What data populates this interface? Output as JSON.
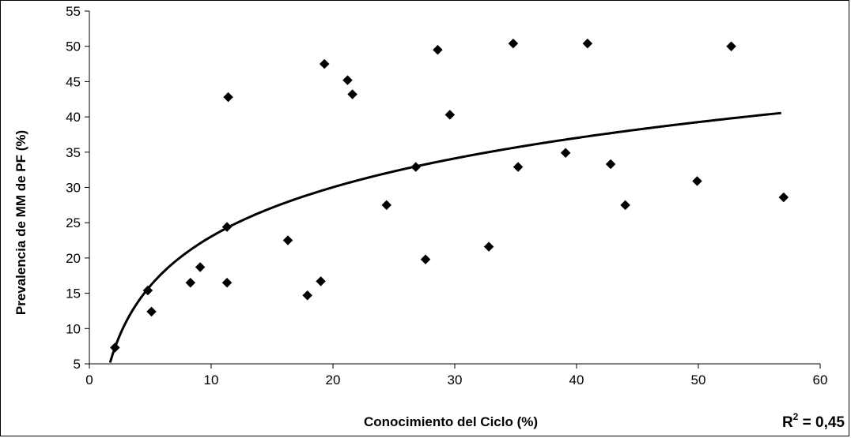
{
  "chart_data": {
    "type": "scatter",
    "title": "",
    "xlabel": "Conocimiento del Ciclo (%)",
    "ylabel": "Prevalencia de MM de PF (%)",
    "xlim": [
      0,
      60
    ],
    "ylim": [
      5,
      55
    ],
    "xticks": [
      "0",
      "10",
      "20",
      "30",
      "40",
      "50",
      "60"
    ],
    "yticks": [
      "5",
      "10",
      "15",
      "20",
      "25",
      "30",
      "35",
      "40",
      "45",
      "50",
      "55"
    ],
    "grid": false,
    "legend": "none",
    "marker": "diamond",
    "marker_color": "#000000",
    "trendline": {
      "type": "logarithmic",
      "color": "#000000",
      "x_range": [
        1.7,
        56.8
      ],
      "r2_label": "R",
      "r2_sup": "2",
      "r2_value": " = 0,45"
    },
    "points": [
      {
        "x": 2.1,
        "y": 7.3
      },
      {
        "x": 4.8,
        "y": 15.4
      },
      {
        "x": 5.1,
        "y": 12.4
      },
      {
        "x": 8.3,
        "y": 16.5
      },
      {
        "x": 9.1,
        "y": 18.7
      },
      {
        "x": 11.3,
        "y": 16.5
      },
      {
        "x": 11.3,
        "y": 24.4
      },
      {
        "x": 11.4,
        "y": 42.8
      },
      {
        "x": 16.3,
        "y": 22.5
      },
      {
        "x": 17.9,
        "y": 14.7
      },
      {
        "x": 19.0,
        "y": 16.7
      },
      {
        "x": 19.3,
        "y": 47.5
      },
      {
        "x": 21.2,
        "y": 45.2
      },
      {
        "x": 21.6,
        "y": 43.2
      },
      {
        "x": 24.4,
        "y": 27.5
      },
      {
        "x": 26.8,
        "y": 32.9
      },
      {
        "x": 27.6,
        "y": 19.8
      },
      {
        "x": 28.6,
        "y": 49.5
      },
      {
        "x": 29.6,
        "y": 40.3
      },
      {
        "x": 32.8,
        "y": 21.6
      },
      {
        "x": 34.8,
        "y": 50.4
      },
      {
        "x": 35.2,
        "y": 32.9
      },
      {
        "x": 39.1,
        "y": 34.9
      },
      {
        "x": 40.9,
        "y": 50.4
      },
      {
        "x": 42.8,
        "y": 33.3
      },
      {
        "x": 44.0,
        "y": 27.5
      },
      {
        "x": 49.9,
        "y": 30.9
      },
      {
        "x": 52.7,
        "y": 50.0
      },
      {
        "x": 57.0,
        "y": 28.6
      }
    ]
  }
}
